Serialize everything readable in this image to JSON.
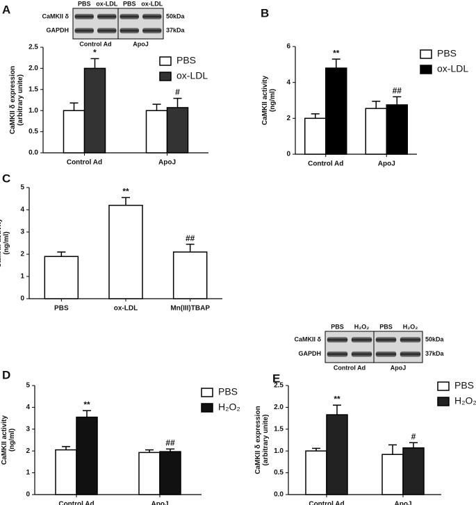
{
  "chart_data": [
    {
      "type": "bar",
      "label": "A",
      "ylabel": [
        "CaMKII δ expression",
        "(arbitrary unite)"
      ],
      "categories": [
        "Control Ad",
        "ApoJ"
      ],
      "series": [
        {
          "name": "PBS",
          "color": "#ffffff",
          "values": [
            1.0,
            1.0
          ],
          "errors": [
            0.18,
            0.15
          ],
          "annotations": [
            null,
            null
          ]
        },
        {
          "name": "ox-LDL",
          "color": "#333333",
          "values": [
            2.0,
            1.07
          ],
          "errors": [
            0.23,
            0.22
          ],
          "annotations": [
            "*",
            "#"
          ]
        }
      ],
      "ylim": [
        0,
        2.5
      ],
      "yticks": [
        {
          "value": 0,
          "label": "0.0"
        },
        0.5,
        {
          "value": 1,
          "label": "1.0"
        },
        1.5,
        {
          "value": 2,
          "label": "2.0"
        },
        2.5
      ],
      "legend": "upper right",
      "blot": {
        "lanes": [
          "PBS",
          "ox-LDL",
          "PBS",
          "ox-LDL"
        ],
        "rows": [
          "CaMKII δ",
          "GAPDH"
        ],
        "sizes": [
          "50kDa",
          "37kDa"
        ],
        "groups": [
          "Control Ad",
          "ApoJ"
        ]
      }
    },
    {
      "type": "bar",
      "label": "B",
      "ylabel": [
        "CaMKII activity",
        "(ng/ml)"
      ],
      "categories": [
        "Control Ad",
        "ApoJ"
      ],
      "series": [
        {
          "name": "PBS",
          "color": "#ffffff",
          "values": [
            2.0,
            2.55
          ],
          "errors": [
            0.25,
            0.4
          ],
          "annotations": [
            null,
            null
          ]
        },
        {
          "name": "ox-LDL",
          "color": "#000000",
          "values": [
            4.8,
            2.75
          ],
          "errors": [
            0.5,
            0.45
          ],
          "annotations": [
            "**",
            "##"
          ]
        }
      ],
      "ylim": [
        0,
        6
      ],
      "yticks": [
        0,
        2,
        4,
        6
      ],
      "legend": "upper right"
    },
    {
      "type": "bar",
      "label": "C",
      "ylabel": [
        "CaMKII activity",
        "(ng/ml)"
      ],
      "categories": [
        "PBS",
        "ox-LDL",
        "Mn(III)TBAP"
      ],
      "values": [
        1.9,
        4.2,
        2.1
      ],
      "errors": [
        0.2,
        0.35,
        0.35
      ],
      "annotations": [
        null,
        "**",
        "##"
      ],
      "color": "#ffffff",
      "ylim": [
        0,
        5
      ],
      "yticks": [
        0,
        1,
        2,
        3,
        4,
        5
      ]
    },
    {
      "type": "bar",
      "label": "D",
      "ylabel": [
        "CaMKII activity",
        "(ng/ml)"
      ],
      "categories": [
        "Control Ad",
        "ApoJ"
      ],
      "series": [
        {
          "name": "PBS",
          "color": "#ffffff",
          "values": [
            2.05,
            1.93
          ],
          "errors": [
            0.15,
            0.12
          ],
          "annotations": [
            null,
            null
          ]
        },
        {
          "name": "H₂O₂",
          "color": "#111111",
          "values": [
            3.55,
            1.97
          ],
          "errors": [
            0.3,
            0.12
          ],
          "annotations": [
            "**",
            "##"
          ]
        }
      ],
      "ylim": [
        0,
        5
      ],
      "yticks": [
        0,
        1,
        2,
        3,
        4,
        5
      ],
      "legend": "upper right"
    },
    {
      "type": "bar",
      "label": "E",
      "ylabel": [
        "CaMKII δ expression",
        "(arbitrary unite)"
      ],
      "categories": [
        "Control Ad",
        "ApoJ"
      ],
      "series": [
        {
          "name": "PBS",
          "color": "#ffffff",
          "values": [
            1.0,
            0.92
          ],
          "errors": [
            0.06,
            0.22
          ],
          "annotations": [
            null,
            null
          ]
        },
        {
          "name": "H₂O₂",
          "color": "#222222",
          "values": [
            1.83,
            1.07
          ],
          "errors": [
            0.22,
            0.12
          ],
          "annotations": [
            "**",
            "#"
          ]
        }
      ],
      "ylim": [
        0,
        2.5
      ],
      "yticks": [
        {
          "value": 0,
          "label": "0.0"
        },
        0.5,
        {
          "value": 1,
          "label": "1.0"
        },
        1.5,
        {
          "value": 2,
          "label": "2.0"
        },
        2.5
      ],
      "legend": "upper right",
      "blot": {
        "lanes": [
          "PBS",
          "H₂O₂",
          "PBS",
          "H₂O₂"
        ],
        "rows": [
          "CaMKII δ",
          "GAPDH"
        ],
        "sizes": [
          "50kDa",
          "37kDa"
        ],
        "groups": [
          "Control Ad",
          "ApoJ"
        ]
      }
    }
  ]
}
